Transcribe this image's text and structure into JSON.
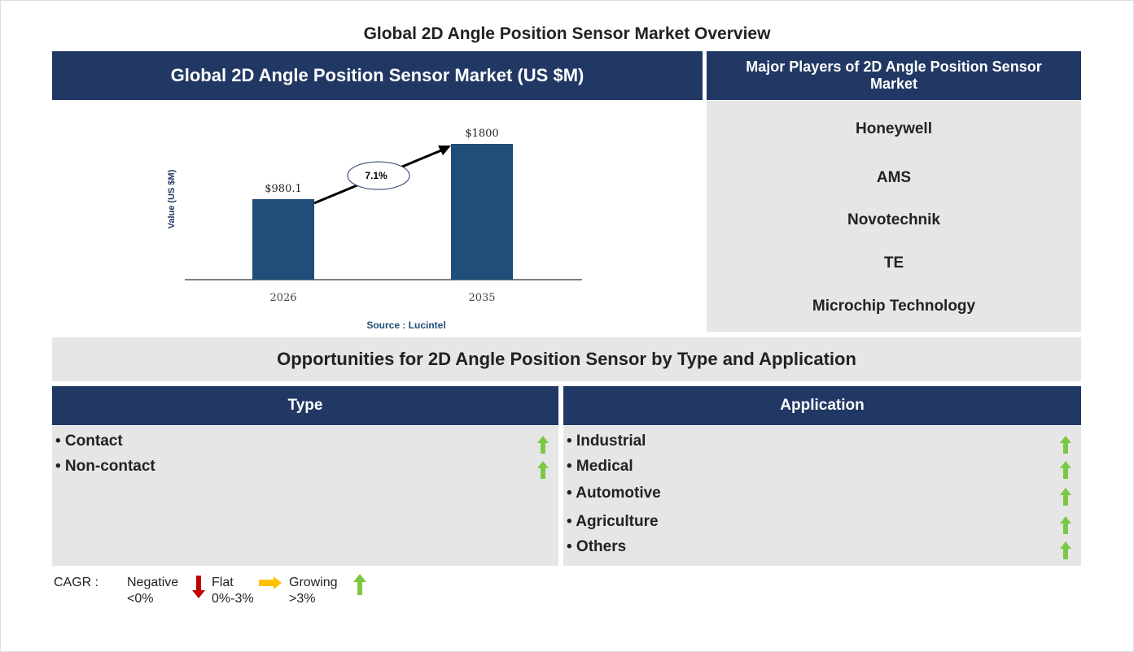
{
  "title": "Global 2D Angle Position Sensor Market Overview",
  "market_header": "Global 2D Angle Position Sensor Market (US $M)",
  "players_header": "Major Players of 2D Angle Position Sensor Market",
  "players": [
    "Honeywell",
    "AMS",
    "Novotechnik",
    "TE",
    "Microchip Technology"
  ],
  "opportunities_header": "Opportunities for 2D Angle Position Sensor by Type and Application",
  "type": {
    "header": "Type",
    "items": [
      "• Contact",
      "• Non-contact"
    ],
    "trend": [
      "growing",
      "growing"
    ]
  },
  "application": {
    "header": "Application",
    "items": [
      "• Industrial",
      "• Medical",
      "• Automotive",
      "• Agriculture",
      "• Others"
    ],
    "trend": [
      "growing",
      "growing",
      "growing",
      "growing",
      "growing"
    ]
  },
  "legend": {
    "label": "CAGR :",
    "negative": "Negative",
    "negative_range": "<0%",
    "flat": "Flat",
    "flat_range": "0%-3%",
    "growing": "Growing",
    "growing_range": ">3%"
  },
  "colors": {
    "navy": "#213864",
    "bar": "#1f4e79",
    "growing": "#7dc843",
    "flat": "#ffc000",
    "negative": "#c00000"
  },
  "chart_data": {
    "type": "bar",
    "categories": [
      "2026",
      "2035"
    ],
    "values": [
      980.1,
      1800
    ],
    "data_labels": [
      "$980.1",
      "$1800"
    ],
    "ylabel": "Value (US $M)",
    "cagr_annotation": "7.1%",
    "source": "Source : Lucintel",
    "grid": false
  }
}
